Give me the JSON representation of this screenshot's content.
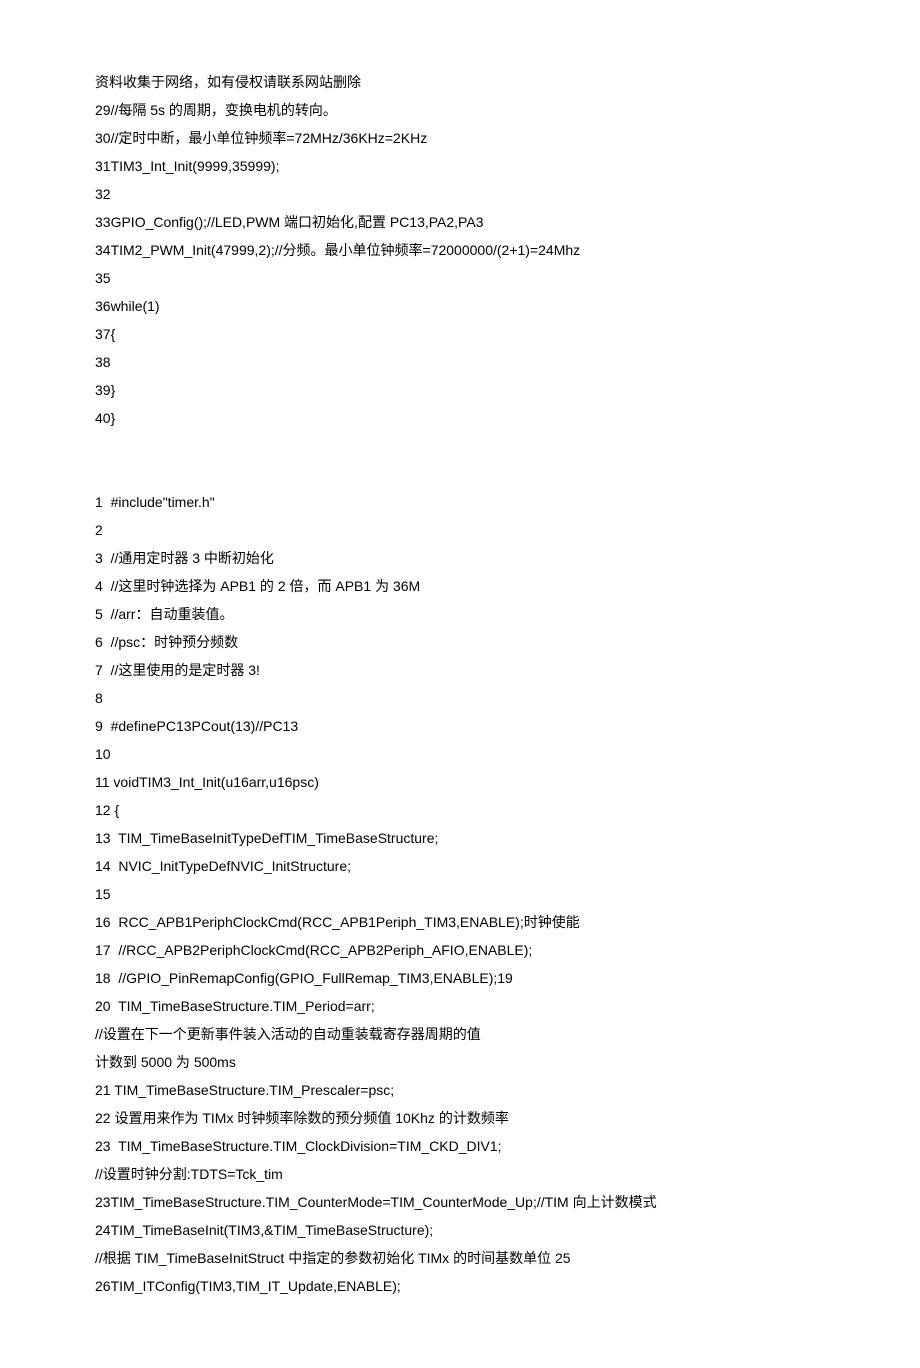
{
  "lines": [
    "资料收集于网络，如有侵权请联系网站删除",
    "29//每隔 5s 的周期，变换电机的转向。",
    "30//定时中断，最小单位钟频率=72MHz/36KHz=2KHz",
    "31TIM3_Int_Init(9999,35999);",
    "32",
    "33GPIO_Config();//LED,PWM 端口初始化,配置 PC13,PA2,PA3",
    "34TIM2_PWM_Init(47999,2);//分频。最小单位钟频率=72000000/(2+1)=24Mhz",
    "35",
    "36while(1)",
    "37{",
    "38",
    "39}",
    "40}",
    "",
    "",
    "1  #include\"timer.h\"",
    "2",
    "3  //通用定时器 3 中断初始化",
    "4  //这里时钟选择为 APB1 的 2 倍，而 APB1 为 36M",
    "5  //arr：自动重装值。",
    "6  //psc：时钟预分频数",
    "7  //这里使用的是定时器 3!",
    "8",
    "9  #definePC13PCout(13)//PC13",
    "10",
    "11 voidTIM3_Int_Init(u16arr,u16psc)",
    "12 {",
    "13  TIM_TimeBaseInitTypeDefTIM_TimeBaseStructure;",
    "14  NVIC_InitTypeDefNVIC_InitStructure;",
    "15",
    "16  RCC_APB1PeriphClockCmd(RCC_APB1Periph_TIM3,ENABLE);时钟使能",
    "17  //RCC_APB2PeriphClockCmd(RCC_APB2Periph_AFIO,ENABLE);",
    "18  //GPIO_PinRemapConfig(GPIO_FullRemap_TIM3,ENABLE);19",
    "20  TIM_TimeBaseStructure.TIM_Period=arr;",
    "//设置在下一个更新事件装入活动的自动重装载寄存器周期的值",
    "计数到 5000 为 500ms",
    "21 TIM_TimeBaseStructure.TIM_Prescaler=psc;",
    "22 设置用来作为 TIMx 时钟频率除数的预分频值 10Khz 的计数频率",
    "23  TIM_TimeBaseStructure.TIM_ClockDivision=TIM_CKD_DIV1;",
    "//设置时钟分割:TDTS=Tck_tim",
    "23TIM_TimeBaseStructure.TIM_CounterMode=TIM_CounterMode_Up;//TIM 向上计数模式",
    "24TIM_TimeBaseInit(TIM3,&TIM_TimeBaseStructure);",
    "//根据 TIM_TimeBaseInitStruct 中指定的参数初始化 TIMx 的时间基数单位 25",
    "26TIM_ITConfig(TIM3,TIM_IT_Update,ENABLE);"
  ]
}
